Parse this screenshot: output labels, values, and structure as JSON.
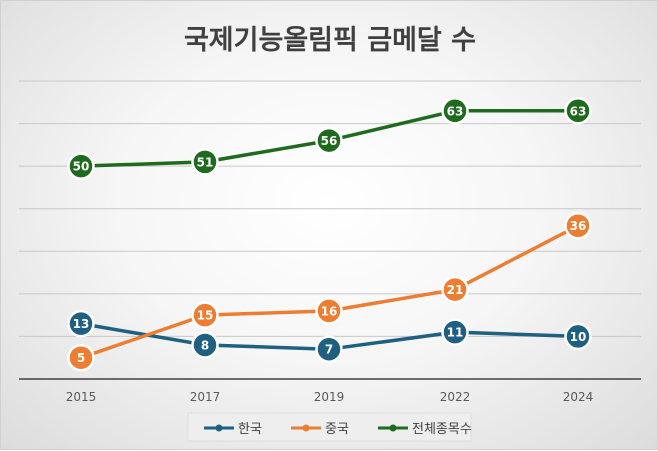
{
  "chart_data": {
    "type": "line",
    "title": "국제기능올림픽 금메달 수",
    "categories": [
      "2015",
      "2017",
      "2019",
      "2022",
      "2024"
    ],
    "ylim": [
      0,
      70
    ],
    "grid": true,
    "legend_position": "bottom",
    "series": [
      {
        "name": "한국",
        "values": [
          13,
          8,
          7,
          11,
          10
        ],
        "color": "#1f5f82"
      },
      {
        "name": "중국",
        "values": [
          5,
          15,
          16,
          21,
          36
        ],
        "color": "#ed7d31"
      },
      {
        "name": "전체종목수",
        "values": [
          50,
          51,
          56,
          63,
          63
        ],
        "color": "#1e6b1e"
      }
    ]
  }
}
